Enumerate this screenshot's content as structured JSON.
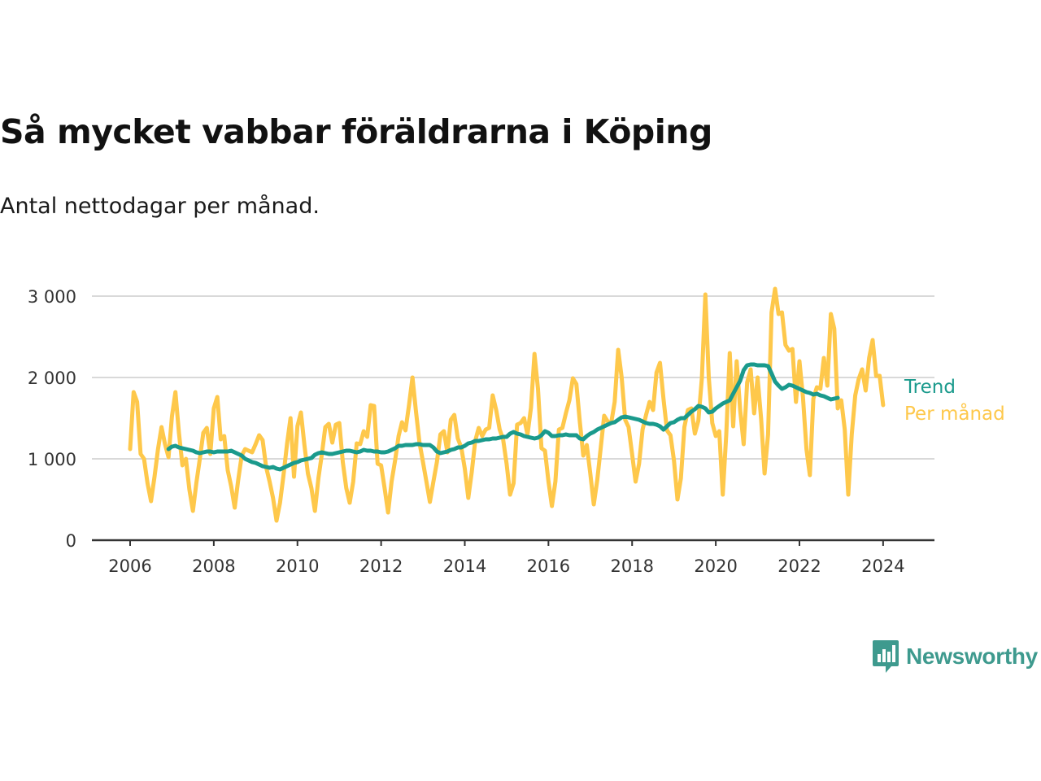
{
  "colors": {
    "trend": "#1a9a8c",
    "monthly": "#fec84b",
    "grid": "#d9d9d9",
    "axis": "#333333",
    "brand": "#3e9a8e"
  },
  "brand": {
    "name": "Newsworthy",
    "icon": "newsworthy-logo-icon"
  },
  "chart_data": {
    "type": "line",
    "title": "Så mycket vabbar föräldrarna i Köping",
    "subtitle": "Antal nettodagar per månad.",
    "xlabel": "",
    "ylabel": "",
    "x_range": [
      "2006-01",
      "2024-05"
    ],
    "ylim": [
      0,
      3000
    ],
    "y_ticks": [
      0,
      1000,
      2000,
      3000
    ],
    "y_tick_labels": [
      "0",
      "1 000",
      "2 000",
      "3 000"
    ],
    "x_ticks": [
      "2006",
      "2008",
      "2010",
      "2012",
      "2014",
      "2016",
      "2018",
      "2020",
      "2022",
      "2024"
    ],
    "grid": "horizontal",
    "legend": "direct labels at line ends",
    "series": [
      {
        "name": "Trend",
        "start": "2006-12",
        "values": [
          1120,
          1150,
          1160,
          1140,
          1130,
          1120,
          1110,
          1100,
          1080,
          1070,
          1080,
          1090,
          1090,
          1080,
          1090,
          1090,
          1090,
          1090,
          1100,
          1080,
          1060,
          1040,
          1000,
          980,
          960,
          950,
          930,
          910,
          900,
          890,
          900,
          880,
          870,
          890,
          910,
          930,
          950,
          960,
          980,
          990,
          1000,
          1010,
          1050,
          1070,
          1080,
          1070,
          1060,
          1060,
          1070,
          1080,
          1090,
          1100,
          1100,
          1090,
          1080,
          1090,
          1110,
          1100,
          1100,
          1090,
          1090,
          1080,
          1080,
          1090,
          1110,
          1130,
          1160,
          1160,
          1170,
          1170,
          1170,
          1180,
          1180,
          1170,
          1170,
          1170,
          1140,
          1090,
          1070,
          1080,
          1090,
          1110,
          1120,
          1140,
          1140,
          1160,
          1190,
          1200,
          1220,
          1220,
          1230,
          1240,
          1240,
          1250,
          1250,
          1260,
          1270,
          1270,
          1310,
          1330,
          1310,
          1300,
          1280,
          1270,
          1260,
          1250,
          1260,
          1290,
          1340,
          1320,
          1280,
          1280,
          1290,
          1290,
          1300,
          1290,
          1290,
          1290,
          1250,
          1240,
          1280,
          1310,
          1330,
          1360,
          1380,
          1400,
          1420,
          1440,
          1450,
          1480,
          1510,
          1520,
          1510,
          1500,
          1490,
          1480,
          1460,
          1440,
          1430,
          1430,
          1420,
          1400,
          1360,
          1400,
          1440,
          1450,
          1480,
          1500,
          1500,
          1540,
          1580,
          1610,
          1650,
          1640,
          1620,
          1570,
          1580,
          1620,
          1650,
          1680,
          1700,
          1720,
          1800,
          1880,
          1960,
          2090,
          2150,
          2160,
          2160,
          2150,
          2150,
          2150,
          2140,
          2050,
          1950,
          1900,
          1860,
          1880,
          1910,
          1900,
          1880,
          1860,
          1840,
          1820,
          1810,
          1790,
          1800,
          1780,
          1770,
          1750,
          1730,
          1740,
          1750
        ]
      },
      {
        "name": "Per månad",
        "start": "2006-01",
        "values": [
          1120,
          1820,
          1700,
          1060,
          1000,
          700,
          480,
          780,
          1120,
          1390,
          1180,
          1020,
          1520,
          1820,
          1320,
          920,
          1000,
          620,
          360,
          700,
          1000,
          1320,
          1380,
          1060,
          1620,
          1760,
          1240,
          1280,
          860,
          660,
          400,
          740,
          1040,
          1120,
          1100,
          1080,
          1180,
          1290,
          1230,
          900,
          720,
          520,
          240,
          460,
          800,
          1180,
          1500,
          780,
          1400,
          1570,
          1170,
          820,
          640,
          360,
          760,
          1060,
          1390,
          1430,
          1200,
          1420,
          1440,
          960,
          640,
          460,
          720,
          1190,
          1180,
          1340,
          1270,
          1660,
          1650,
          940,
          920,
          640,
          340,
          720,
          980,
          1280,
          1450,
          1350,
          1660,
          2000,
          1580,
          1200,
          960,
          720,
          470,
          720,
          960,
          1300,
          1340,
          1080,
          1480,
          1540,
          1250,
          1140,
          880,
          520,
          840,
          1220,
          1380,
          1280,
          1360,
          1380,
          1780,
          1600,
          1360,
          1240,
          940,
          560,
          700,
          1420,
          1440,
          1500,
          1300,
          1630,
          2290,
          1860,
          1130,
          1100,
          720,
          420,
          720,
          1360,
          1380,
          1560,
          1720,
          1990,
          1920,
          1460,
          1040,
          1170,
          820,
          440,
          740,
          1140,
          1530,
          1460,
          1440,
          1700,
          2340,
          2000,
          1480,
          1390,
          1060,
          720,
          940,
          1360,
          1540,
          1700,
          1600,
          2060,
          2180,
          1740,
          1350,
          1290,
          980,
          500,
          760,
          1390,
          1600,
          1620,
          1310,
          1470,
          1990,
          3020,
          2000,
          1440,
          1280,
          1340,
          560,
          1300,
          2300,
          1400,
          2200,
          1600,
          1180,
          1940,
          2100,
          1560,
          2000,
          1500,
          820,
          1300,
          2800,
          3090,
          2780,
          2800,
          2400,
          2330,
          2350,
          1700,
          2200,
          1760,
          1120,
          800,
          1740,
          1880,
          1860,
          2240,
          1900,
          2780,
          2600,
          1620,
          1720,
          1360,
          560,
          1300,
          1780,
          1980,
          2100,
          1840,
          2240,
          2460,
          2020,
          2020,
          1660
        ]
      }
    ]
  }
}
